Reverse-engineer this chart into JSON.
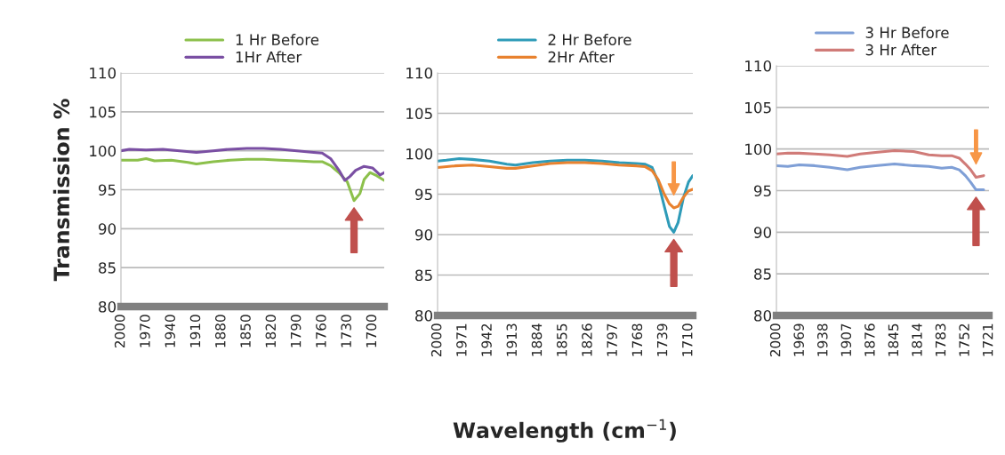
{
  "chart_data": [
    {
      "type": "line",
      "ylabel": "Transmission %",
      "xlim": [
        2000,
        1686
      ],
      "ylim": [
        80,
        110
      ],
      "xticks": [
        2000,
        1970,
        1940,
        1910,
        1880,
        1850,
        1820,
        1790,
        1760,
        1730,
        1700
      ],
      "yticks": [
        80,
        85,
        90,
        95,
        100,
        105,
        110
      ],
      "grid": "y",
      "legend": "top",
      "marker": "none",
      "line_style": "solid",
      "series": [
        {
          "name": "1 Hr Before",
          "color": "#8cc04b",
          "x": [
            2000,
            1980,
            1970,
            1960,
            1940,
            1920,
            1910,
            1890,
            1870,
            1850,
            1830,
            1810,
            1790,
            1770,
            1760,
            1750,
            1740,
            1730,
            1722,
            1715,
            1710,
            1703,
            1695,
            1686
          ],
          "values": [
            98.8,
            98.8,
            99.0,
            98.7,
            98.8,
            98.5,
            98.3,
            98.6,
            98.8,
            98.9,
            98.9,
            98.8,
            98.7,
            98.6,
            98.6,
            98.1,
            97.2,
            96.0,
            93.6,
            94.5,
            96.3,
            97.2,
            96.8,
            96.2
          ]
        },
        {
          "name": "1Hr After",
          "color": "#7a4fa3",
          "x": [
            2000,
            1990,
            1970,
            1950,
            1930,
            1910,
            1890,
            1870,
            1850,
            1830,
            1810,
            1790,
            1770,
            1760,
            1750,
            1740,
            1733,
            1727,
            1720,
            1710,
            1700,
            1691,
            1686
          ],
          "values": [
            100.0,
            100.2,
            100.1,
            100.2,
            100.0,
            99.8,
            100.0,
            100.2,
            100.3,
            100.3,
            100.2,
            100.0,
            99.8,
            99.7,
            99.0,
            97.5,
            96.2,
            96.7,
            97.5,
            98.0,
            97.8,
            96.9,
            97.2
          ]
        }
      ]
    },
    {
      "type": "line",
      "xlabel": "Wavelength (cm$^{−1}$)",
      "xlim": [
        2000,
        1705
      ],
      "ylim": [
        80,
        110
      ],
      "xticks": [
        2000,
        1971,
        1942,
        1913,
        1884,
        1855,
        1826,
        1797,
        1768,
        1739,
        1710
      ],
      "yticks": [
        80,
        85,
        90,
        95,
        100,
        105,
        110
      ],
      "grid": "y",
      "legend": "top",
      "marker": "none",
      "line_style": "solid",
      "series": [
        {
          "name": "2 Hr Before",
          "color": "#2e9bb8",
          "x": [
            2000,
            1990,
            1975,
            1960,
            1940,
            1920,
            1910,
            1890,
            1870,
            1850,
            1830,
            1810,
            1790,
            1770,
            1760,
            1752,
            1745,
            1738,
            1732,
            1727,
            1722,
            1716,
            1710,
            1705
          ],
          "values": [
            99.1,
            99.2,
            99.4,
            99.3,
            99.1,
            98.7,
            98.6,
            98.9,
            99.1,
            99.2,
            99.2,
            99.1,
            98.9,
            98.8,
            98.7,
            98.3,
            96.5,
            93.5,
            91.0,
            90.3,
            91.5,
            94.5,
            96.5,
            97.3
          ]
        },
        {
          "name": "2Hr After",
          "color": "#e8822f",
          "x": [
            2000,
            1980,
            1960,
            1940,
            1920,
            1910,
            1890,
            1870,
            1850,
            1830,
            1810,
            1790,
            1770,
            1760,
            1752,
            1745,
            1738,
            1732,
            1727,
            1722,
            1716,
            1710,
            1705
          ],
          "values": [
            98.3,
            98.5,
            98.6,
            98.4,
            98.2,
            98.2,
            98.5,
            98.8,
            98.9,
            98.9,
            98.8,
            98.6,
            98.5,
            98.4,
            97.9,
            96.8,
            95.0,
            93.8,
            93.3,
            93.5,
            94.6,
            95.4,
            95.6
          ]
        }
      ]
    },
    {
      "type": "line",
      "xlim": [
        2000,
        1721
      ],
      "ylim": [
        80,
        110
      ],
      "xticks": [
        2000,
        1969,
        1938,
        1907,
        1876,
        1845,
        1814,
        1783,
        1752,
        1721
      ],
      "yticks": [
        80,
        85,
        90,
        95,
        100,
        105,
        110
      ],
      "grid": "y",
      "legend": "top",
      "marker": "none",
      "line_style": "solid",
      "series": [
        {
          "name": "3 Hr Before",
          "color": "#7f9fd6",
          "x": [
            2000,
            1985,
            1970,
            1950,
            1930,
            1907,
            1890,
            1870,
            1845,
            1820,
            1800,
            1783,
            1770,
            1760,
            1752,
            1745,
            1738,
            1728
          ],
          "values": [
            98.0,
            97.9,
            98.1,
            98.0,
            97.8,
            97.5,
            97.8,
            98.0,
            98.2,
            98.0,
            97.9,
            97.7,
            97.8,
            97.5,
            96.8,
            96.0,
            95.1,
            95.1
          ]
        },
        {
          "name": "3 Hr After",
          "color": "#d07b78",
          "x": [
            2000,
            1985,
            1970,
            1950,
            1930,
            1907,
            1890,
            1870,
            1845,
            1820,
            1800,
            1783,
            1770,
            1760,
            1752,
            1745,
            1738,
            1728
          ],
          "values": [
            99.4,
            99.5,
            99.5,
            99.4,
            99.3,
            99.1,
            99.4,
            99.6,
            99.8,
            99.7,
            99.3,
            99.2,
            99.2,
            98.9,
            98.2,
            97.5,
            96.6,
            96.8
          ]
        }
      ]
    }
  ]
}
